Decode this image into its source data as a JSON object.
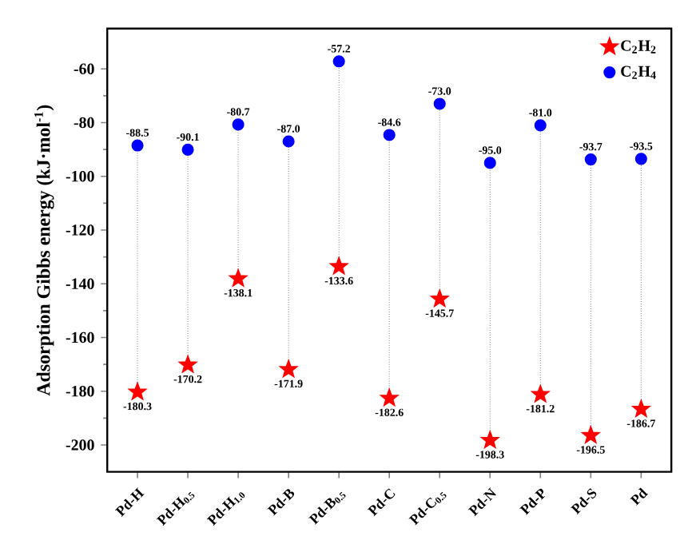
{
  "chart_data": {
    "type": "scatter",
    "ylabel": "Adsorption Gibbs energy (kJ·mol$^{-1}$)",
    "categories": [
      "Pd-H",
      "Pd-H$_{0.5}$",
      "Pd-H$_{1.0}$",
      "Pd-B",
      "Pd-B$_{0.5}$",
      "Pd-C",
      "Pd-C$_{0.5}$",
      "Pd-N",
      "Pd-P",
      "Pd-S",
      "Pd"
    ],
    "series": [
      {
        "name": "C$_{2}$H$_{2}$",
        "color": "#ff0000",
        "marker": "star",
        "values": [
          -180.3,
          -170.2,
          -138.1,
          -171.9,
          -133.6,
          -182.6,
          -145.7,
          -198.3,
          -181.2,
          -196.5,
          -186.7
        ],
        "value_labels": [
          "-180.3",
          "-170.2",
          "-138.1",
          "-171.9",
          "-133.6",
          "-182.6",
          "-145.7",
          "-198.3",
          "-181.2",
          "-196.5",
          "-186.7"
        ]
      },
      {
        "name": "C$_{2}$H$_{4}$",
        "color": "#0000ff",
        "marker": "circle",
        "values": [
          -88.5,
          -90.1,
          -80.7,
          -87.0,
          -57.2,
          -84.6,
          -73.0,
          -95.0,
          -81.0,
          -93.7,
          -93.5
        ],
        "value_labels": [
          "-88.5",
          "-90.1",
          "-80.7",
          "-87.0",
          "-57.2",
          "-84.6",
          "-73.0",
          "-95.0",
          "-81.0",
          "-93.7",
          "-93.5"
        ]
      }
    ],
    "ylim": [
      -210,
      -45
    ],
    "yticks": [
      -200,
      -180,
      -160,
      -140,
      -120,
      -100,
      -80,
      -60
    ],
    "legend": "top right",
    "grid": false
  }
}
